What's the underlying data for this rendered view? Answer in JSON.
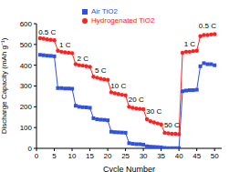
{
  "chart_data": {
    "type": "line",
    "x_label": "Cycle Number",
    "y_label": "Discharge Capacity (mAh g⁻¹)",
    "x": [
      1,
      2,
      3,
      4,
      5,
      6,
      7,
      8,
      9,
      10,
      11,
      12,
      13,
      14,
      15,
      16,
      17,
      18,
      19,
      20,
      21,
      22,
      23,
      24,
      25,
      26,
      27,
      28,
      29,
      30,
      31,
      32,
      33,
      34,
      35,
      36,
      37,
      38,
      39,
      40,
      41,
      42,
      43,
      44,
      45,
      46,
      47,
      48,
      49,
      50
    ],
    "series": [
      {
        "name": "Air TiO2",
        "color": "#3050e0",
        "marker": "square",
        "values": [
          450,
          448,
          446,
          445,
          443,
          290,
          290,
          288,
          288,
          287,
          205,
          200,
          198,
          197,
          195,
          145,
          140,
          138,
          137,
          135,
          80,
          78,
          77,
          76,
          75,
          25,
          22,
          20,
          20,
          18,
          10,
          8,
          7,
          6,
          5,
          2,
          1,
          1,
          1,
          1,
          275,
          278,
          280,
          280,
          282,
          395,
          410,
          405,
          405,
          400
        ]
      },
      {
        "name": "Hydrogenated TiO2",
        "color": "#ff2020",
        "marker": "circle",
        "values": [
          530,
          528,
          525,
          522,
          520,
          470,
          465,
          462,
          460,
          458,
          405,
          400,
          398,
          395,
          392,
          345,
          340,
          335,
          332,
          330,
          270,
          265,
          262,
          258,
          255,
          200,
          195,
          192,
          190,
          188,
          140,
          130,
          125,
          120,
          115,
          75,
          72,
          70,
          70,
          68,
          460,
          465,
          465,
          468,
          470,
          540,
          545,
          545,
          548,
          550
        ]
      }
    ],
    "xlim": [
      0,
      52
    ],
    "xticks": [
      0,
      5,
      10,
      15,
      20,
      25,
      30,
      35,
      40,
      45,
      50
    ],
    "ylim": [
      0,
      600
    ],
    "yticks": [
      0,
      100,
      200,
      300,
      400,
      500,
      600
    ],
    "grid": false,
    "legend": "top",
    "annotations": [
      {
        "text": "0.5 C",
        "x": 3,
        "y": 560
      },
      {
        "text": "1 C",
        "x": 8,
        "y": 500
      },
      {
        "text": "2 C",
        "x": 13,
        "y": 435
      },
      {
        "text": "5 C",
        "x": 18,
        "y": 375
      },
      {
        "text": "10 C",
        "x": 23,
        "y": 302
      },
      {
        "text": "20 C",
        "x": 28,
        "y": 235
      },
      {
        "text": "30 C",
        "x": 33,
        "y": 178
      },
      {
        "text": "50 C",
        "x": 38,
        "y": 112
      },
      {
        "text": "1 C",
        "x": 43,
        "y": 505
      },
      {
        "text": "0.5 C",
        "x": 48,
        "y": 590
      }
    ]
  }
}
